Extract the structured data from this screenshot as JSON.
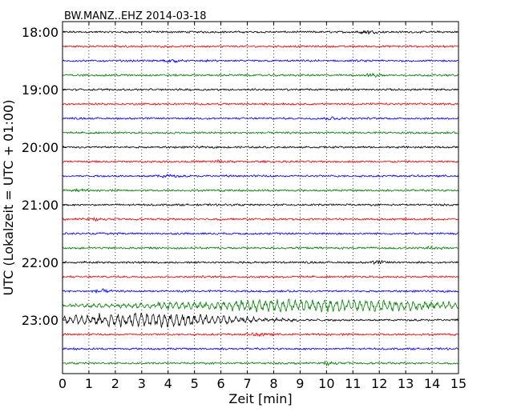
{
  "chart_data": {
    "type": "line",
    "title": "BW.MANZ..EHZ 2014-03-18",
    "xlabel": "Zeit  [min]",
    "ylabel": "UTC (Lokalzeit = UTC + 01:00)",
    "xlim": [
      0,
      15
    ],
    "x_ticks": [
      "0",
      "1",
      "2",
      "3",
      "4",
      "5",
      "6",
      "7",
      "8",
      "9",
      "10",
      "11",
      "12",
      "13",
      "14",
      "15"
    ],
    "y_tick_labels": [
      "18:00",
      "19:00",
      "20:00",
      "21:00",
      "22:00",
      "23:00"
    ],
    "trace_interval_minutes": 15,
    "trace_count": 24,
    "colors": [
      "#000000",
      "#ff0000",
      "#0000ff",
      "#008000"
    ],
    "grid": "vertical dotted at every minute",
    "noise_amplitude": 1.4,
    "bursts": [
      {
        "trace": 0,
        "x": 11.5,
        "amp": 3
      },
      {
        "trace": 2,
        "x": 4.0,
        "amp": 2.5
      },
      {
        "trace": 3,
        "x": 11.8,
        "amp": 2.5
      },
      {
        "trace": 6,
        "x": 10.2,
        "amp": 2.5
      },
      {
        "trace": 9,
        "x": 6.0,
        "amp": 2.5
      },
      {
        "trace": 10,
        "x": 4.0,
        "amp": 2.5
      },
      {
        "trace": 11,
        "x": 0.5,
        "amp": 2
      },
      {
        "trace": 13,
        "x": 1.0,
        "amp": 2.5
      },
      {
        "trace": 15,
        "x": 14.0,
        "amp": 2.5
      },
      {
        "trace": 16,
        "x": 12.0,
        "amp": 2.5
      },
      {
        "trace": 18,
        "x": 1.5,
        "amp": 3
      },
      {
        "trace": 19,
        "x": 9.5,
        "amp": 5,
        "width": 6.5
      },
      {
        "trace": 20,
        "x": 3.2,
        "amp": 6,
        "width": 4
      },
      {
        "trace": 21,
        "x": 7.5,
        "amp": 3
      },
      {
        "trace": 23,
        "x": 10.0,
        "amp": 2.5
      }
    ]
  }
}
